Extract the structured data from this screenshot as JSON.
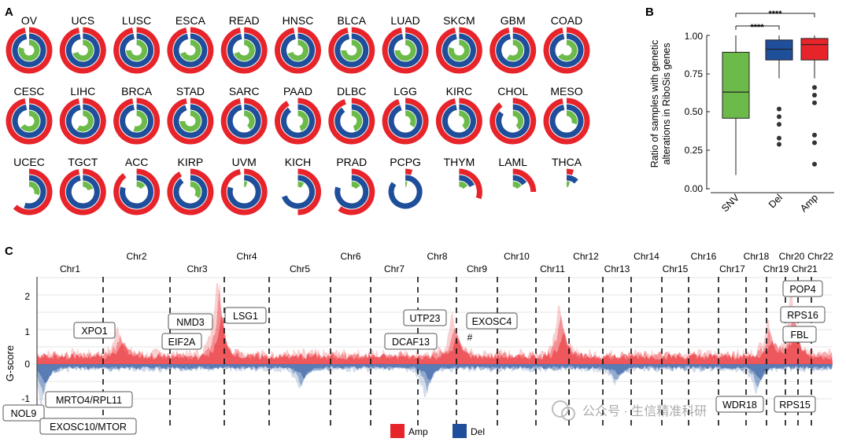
{
  "panel_labels": {
    "a": "A",
    "b": "B",
    "c": "C"
  },
  "colors": {
    "amp": "#e8242b",
    "del": "#1f4e9b",
    "snv": "#6cbb4a",
    "grid": "#e6e6e6"
  },
  "panel_a": {
    "rings": [
      {
        "name": "OV",
        "snv": 0.8,
        "del": 0.97,
        "amp": 0.97
      },
      {
        "name": "UCS",
        "snv": 0.7,
        "del": 0.97,
        "amp": 0.97
      },
      {
        "name": "LUSC",
        "snv": 0.75,
        "del": 0.97,
        "amp": 0.97
      },
      {
        "name": "ESCA",
        "snv": 0.7,
        "del": 0.97,
        "amp": 0.97
      },
      {
        "name": "READ",
        "snv": 0.7,
        "del": 0.97,
        "amp": 0.97
      },
      {
        "name": "HNSC",
        "snv": 0.7,
        "del": 0.97,
        "amp": 0.97
      },
      {
        "name": "BLCA",
        "snv": 0.75,
        "del": 0.97,
        "amp": 0.97
      },
      {
        "name": "LUAD",
        "snv": 0.75,
        "del": 0.97,
        "amp": 0.97
      },
      {
        "name": "SKCM",
        "snv": 0.8,
        "del": 0.97,
        "amp": 0.97
      },
      {
        "name": "GBM",
        "snv": 0.6,
        "del": 0.97,
        "amp": 0.97
      },
      {
        "name": "COAD",
        "snv": 0.65,
        "del": 0.97,
        "amp": 0.97
      },
      {
        "name": "CESC",
        "snv": 0.65,
        "del": 0.97,
        "amp": 0.97
      },
      {
        "name": "LIHC",
        "snv": 0.6,
        "del": 0.97,
        "amp": 0.97
      },
      {
        "name": "BRCA",
        "snv": 0.55,
        "del": 0.97,
        "amp": 0.97
      },
      {
        "name": "STAD",
        "snv": 0.75,
        "del": 0.95,
        "amp": 0.97
      },
      {
        "name": "SARC",
        "snv": 0.4,
        "del": 0.97,
        "amp": 0.97
      },
      {
        "name": "PAAD",
        "snv": 0.45,
        "del": 0.9,
        "amp": 0.92
      },
      {
        "name": "DLBC",
        "snv": 0.45,
        "del": 0.9,
        "amp": 0.95
      },
      {
        "name": "LGG",
        "snv": 0.35,
        "del": 0.95,
        "amp": 0.95
      },
      {
        "name": "KIRC",
        "snv": 0.4,
        "del": 0.97,
        "amp": 0.97
      },
      {
        "name": "CHOL",
        "snv": 0.4,
        "del": 0.85,
        "amp": 0.9
      },
      {
        "name": "MESO",
        "snv": 0.3,
        "del": 0.97,
        "amp": 0.97
      },
      {
        "name": "UCEC",
        "snv": 0.3,
        "del": 0.55,
        "amp": 0.62
      },
      {
        "name": "TGCT",
        "snv": 0.2,
        "del": 0.97,
        "amp": 0.97
      },
      {
        "name": "ACC",
        "snv": 0.15,
        "del": 0.8,
        "amp": 0.9
      },
      {
        "name": "KIRP",
        "snv": 0.35,
        "del": 0.9,
        "amp": 0.92
      },
      {
        "name": "UVM",
        "snv": 0.05,
        "del": 0.8,
        "amp": 0.97
      },
      {
        "name": "KICH",
        "snv": 0.1,
        "del": 0.7,
        "amp": 0.5
      },
      {
        "name": "PRAD",
        "snv": 0.15,
        "del": 0.8,
        "amp": 0.6
      },
      {
        "name": "PCPG",
        "snv": 0.03,
        "del": 0.85,
        "amp": 0.05
      },
      {
        "name": "THYM",
        "snv": 0.15,
        "del": 0.18,
        "amp": 0.3
      },
      {
        "name": "LAML",
        "snv": 0.15,
        "del": 0.15,
        "amp": 0.25
      },
      {
        "name": "THCA",
        "snv": 0.05,
        "del": 0.12,
        "amp": 0.05
      }
    ]
  },
  "panel_b": {
    "ylabel_line1": "Ratio of samples with genetic",
    "ylabel_line2": "alterations in RiboSis genes",
    "yticks": [
      "0.00",
      "0.25",
      "0.50",
      "0.75",
      "1.00"
    ],
    "sig1": "****",
    "sig2": "****"
  },
  "chart_data": [
    {
      "type": "box",
      "ylabel": "Ratio of samples with genetic alterations in RiboSis genes",
      "ylim": [
        0,
        1.05
      ],
      "categories": [
        "SNV",
        "Del",
        "Amp"
      ],
      "boxes": [
        {
          "name": "SNV",
          "min": 0.09,
          "q1": 0.46,
          "median": 0.63,
          "q3": 0.89,
          "max": 1.0,
          "outliers": []
        },
        {
          "name": "Del",
          "min": 0.72,
          "q1": 0.84,
          "median": 0.91,
          "q3": 0.97,
          "max": 1.0,
          "outliers": [
            0.52,
            0.47,
            0.42,
            0.33,
            0.29
          ]
        },
        {
          "name": "Amp",
          "min": 0.72,
          "q1": 0.84,
          "median": 0.94,
          "q3": 0.98,
          "max": 1.0,
          "outliers": [
            0.66,
            0.61,
            0.56,
            0.35,
            0.3,
            0.16
          ]
        }
      ]
    },
    {
      "type": "area",
      "ylabel": "G-score",
      "ylim": [
        -1.4,
        2.6
      ],
      "yticks": [
        "2",
        "1",
        "0",
        "-1"
      ],
      "chromosomes": [
        "Chr1",
        "Chr2",
        "Chr3",
        "Chr4",
        "Chr5",
        "Chr6",
        "Chr7",
        "Chr8",
        "Chr9",
        "Chr10",
        "Chr11",
        "Chr12",
        "Chr13",
        "Chr14",
        "Chr15",
        "Chr16",
        "Chr17",
        "Chr18",
        "Chr19",
        "Chr20",
        "Chr21",
        "Chr22"
      ],
      "legend": {
        "amp": "Amp",
        "del": "Del"
      },
      "genes": [
        "XPO1",
        "NMD3",
        "LSG1",
        "EIF2A",
        "UTP23",
        "EXOSC4",
        "DCAF13",
        "POP4",
        "RPS16",
        "FBL",
        "MRTO4/RPL11",
        "NOL9",
        "EXOSC10/MTOR",
        "WDR18",
        "RPS15"
      ],
      "marker": "#"
    }
  ],
  "watermark": "公众号 · 生信精准科研"
}
